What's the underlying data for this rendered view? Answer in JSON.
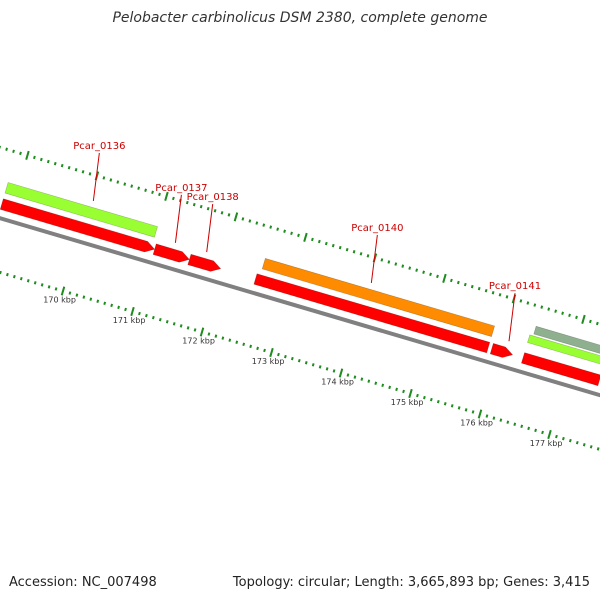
{
  "title": "Pelobacter carbinolicus DSM 2380, complete genome",
  "footer": {
    "accession": "Accession: NC_007498",
    "summary": "Topology: circular; Length: 3,665,893 bp; Genes: 3,415"
  },
  "colors": {
    "cds_red": "#ff0000",
    "gene_lime": "#99ff33",
    "gene_orange": "#ff8c00",
    "gene_gray_green": "#8fb08f",
    "label_red": "#cc0000",
    "tick_green": "#1e8c1e",
    "backbone_gray": "#808080"
  },
  "axis": {
    "unit_labels": [
      "170 kbp",
      "171 kbp",
      "172 kbp",
      "173 kbp",
      "174 kbp",
      "175 kbp",
      "176 kbp",
      "177 kbp"
    ],
    "first_kbp": 170,
    "last_kbp": 177
  },
  "genes": [
    {
      "name": "Pcar_0136",
      "strand": "forward",
      "start_kbp": 168.85,
      "end_kbp": 171.0,
      "color": "lime",
      "label_at_kbp": 170.05
    },
    {
      "name": "Pcar_0137",
      "strand": "reverse",
      "start_kbp": 171.05,
      "end_kbp": 171.55,
      "color": "red",
      "label_at_kbp": 171.3
    },
    {
      "name": "Pcar_0138",
      "strand": "reverse",
      "start_kbp": 171.55,
      "end_kbp": 172.0,
      "color": "red",
      "label_at_kbp": 171.75
    },
    {
      "name": "Pcar_0140",
      "strand": "forward",
      "start_kbp": 172.55,
      "end_kbp": 175.85,
      "color": "orange",
      "label_at_kbp": 174.05
    },
    {
      "name": "Pcar_0141",
      "strand": "reverse",
      "start_kbp": 175.9,
      "end_kbp": 176.2,
      "color": "red",
      "label_at_kbp": 176.1
    }
  ],
  "cds_features": [
    {
      "start_kbp": 168.85,
      "end_kbp": 171.05
    },
    {
      "start_kbp": 172.5,
      "end_kbp": 175.85
    },
    {
      "start_kbp": 176.35,
      "end_kbp": 177.45
    }
  ],
  "extra_tracks": [
    {
      "start_kbp": 176.35,
      "end_kbp": 177.45,
      "color": "lime"
    },
    {
      "start_kbp": 176.4,
      "end_kbp": 177.45,
      "color": "gray_green"
    }
  ]
}
